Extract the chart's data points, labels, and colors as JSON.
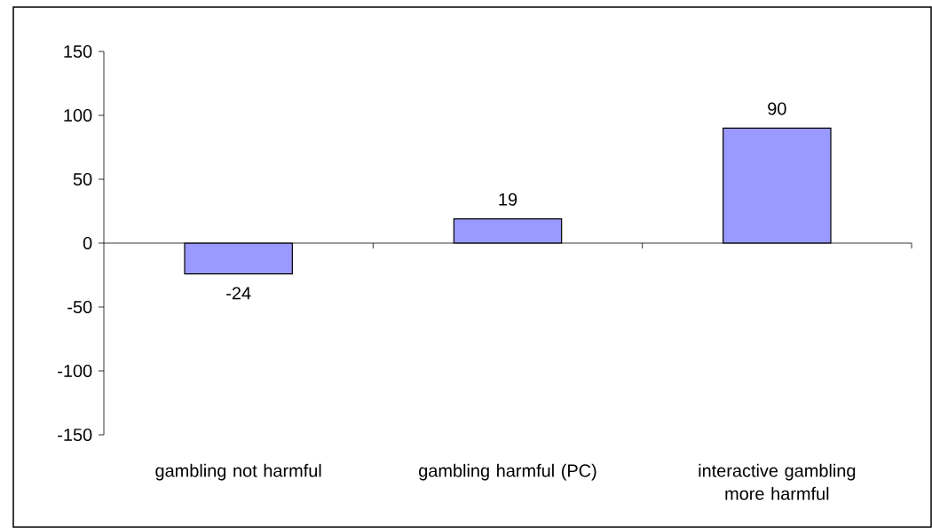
{
  "chart_data": {
    "type": "bar",
    "categories": [
      "gambling not harmful",
      "gambling harmful (PC)",
      "interactive gambling more harmful"
    ],
    "values": [
      -24,
      19,
      90
    ],
    "color": "#9999ff",
    "ylim": [
      -150,
      150
    ],
    "yticks": [
      -150,
      -100,
      -50,
      0,
      50,
      100,
      150
    ],
    "data_labels": true
  }
}
